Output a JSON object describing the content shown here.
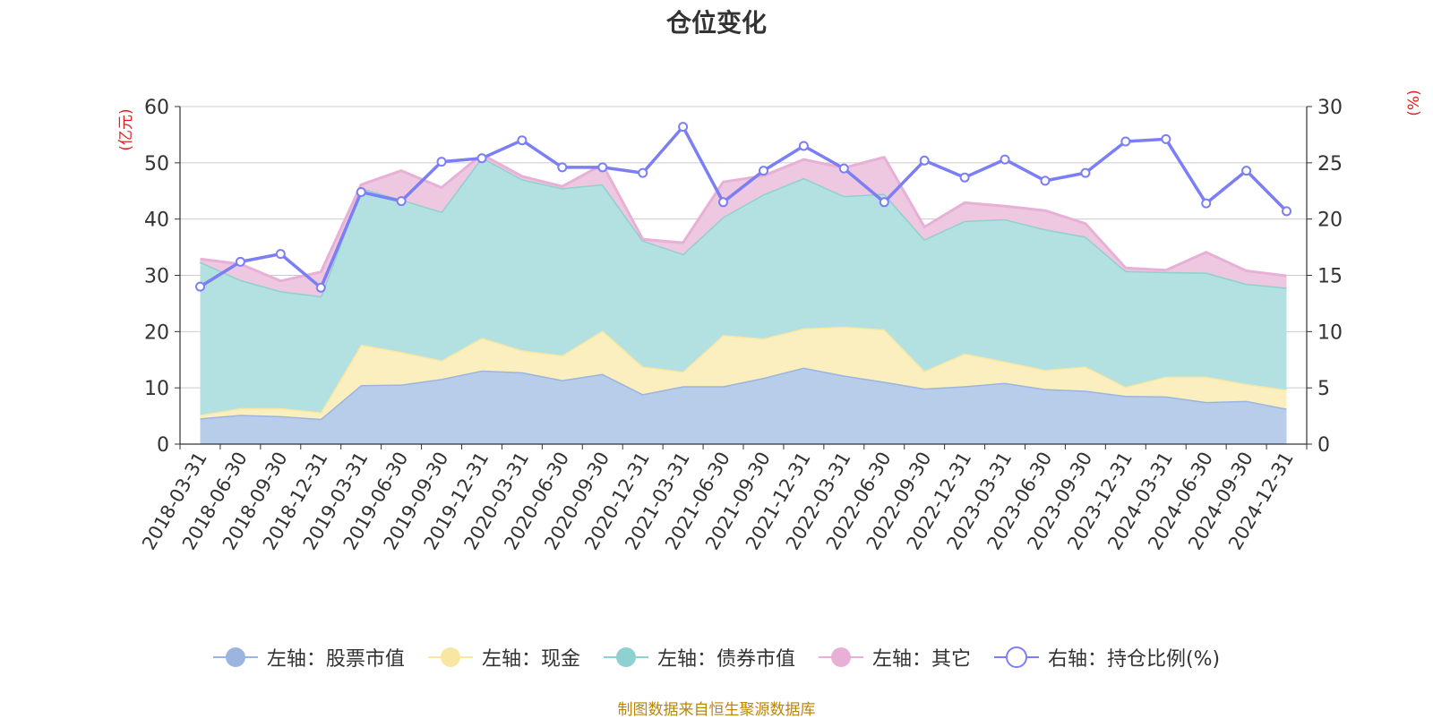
{
  "chart_data": {
    "type": "area",
    "title": "仓位变化",
    "left_axis_label": "(亿元)",
    "right_axis_label": "(%)",
    "left_ylim": [
      0,
      60
    ],
    "right_ylim": [
      0,
      30
    ],
    "left_ticks": [
      "0",
      "10",
      "20",
      "30",
      "40",
      "50",
      "60"
    ],
    "right_ticks": [
      "0",
      "5",
      "10",
      "15",
      "20",
      "25",
      "30"
    ],
    "grid": true,
    "legend_position": "bottom",
    "categories": [
      "2018-03-31",
      "2018-06-30",
      "2018-09-30",
      "2018-12-31",
      "2019-03-31",
      "2019-06-30",
      "2019-09-30",
      "2019-12-31",
      "2020-03-31",
      "2020-06-30",
      "2020-09-30",
      "2020-12-31",
      "2021-03-31",
      "2021-06-30",
      "2021-09-30",
      "2021-12-31",
      "2022-03-31",
      "2022-06-30",
      "2022-09-30",
      "2022-12-31",
      "2023-03-31",
      "2023-06-30",
      "2023-09-30",
      "2023-12-31",
      "2024-03-31",
      "2024-06-30",
      "2024-09-30",
      "2024-12-31"
    ],
    "series": [
      {
        "name": "左轴：股票市值",
        "axis": "left",
        "kind": "stacked-area",
        "color": "#9bb5e0",
        "fill": "#b8cdea",
        "values": [
          4.6,
          5.2,
          5.0,
          4.5,
          10.5,
          10.6,
          11.6,
          13.1,
          12.8,
          11.4,
          12.5,
          8.9,
          10.3,
          10.3,
          11.8,
          13.6,
          12.2,
          11.1,
          9.9,
          10.3,
          10.9,
          9.8,
          9.5,
          8.6,
          8.5,
          7.5,
          7.7,
          6.3
        ]
      },
      {
        "name": "左轴：现金",
        "axis": "left",
        "kind": "stacked-area",
        "color": "#f7e7a3",
        "fill": "#fbefbf",
        "values": [
          0.6,
          1.2,
          1.4,
          1.2,
          7.2,
          5.8,
          3.3,
          5.8,
          3.9,
          4.4,
          7.7,
          4.9,
          2.6,
          9.1,
          7.0,
          7.0,
          8.7,
          9.3,
          3.1,
          5.8,
          3.8,
          3.4,
          4.3,
          1.6,
          3.5,
          4.5,
          3.0,
          3.4
        ]
      },
      {
        "name": "左轴：债券市值",
        "axis": "left",
        "kind": "stacked-area",
        "color": "#8fd0d0",
        "fill": "#b3e0e0",
        "values": [
          27.2,
          22.8,
          20.8,
          20.6,
          27.8,
          27.1,
          26.4,
          32.1,
          30.4,
          29.7,
          26.0,
          22.4,
          20.9,
          21.0,
          25.6,
          26.7,
          23.2,
          24.1,
          23.4,
          23.6,
          25.3,
          25.0,
          23.1,
          20.6,
          18.6,
          18.5,
          17.8,
          18.1
        ]
      },
      {
        "name": "左轴：其它",
        "axis": "left",
        "kind": "stacked-area",
        "color": "#e8b0d6",
        "fill": "#edc8e0",
        "values": [
          0.5,
          2.8,
          1.8,
          4.3,
          0.6,
          5.1,
          4.3,
          0.5,
          0.5,
          0.3,
          3.5,
          0.2,
          2.0,
          6.2,
          3.3,
          3.3,
          5.0,
          6.5,
          2.2,
          3.2,
          2.3,
          3.3,
          2.3,
          0.5,
          0.3,
          3.6,
          2.3,
          2.1
        ]
      },
      {
        "name": "右轴：持仓比例(%)",
        "axis": "right",
        "kind": "line",
        "color": "#7b7ef5",
        "values": [
          14.0,
          16.2,
          16.9,
          13.9,
          22.4,
          21.6,
          25.1,
          25.4,
          27.0,
          24.6,
          24.6,
          24.1,
          28.2,
          21.5,
          24.3,
          26.5,
          24.5,
          21.5,
          25.2,
          23.7,
          25.3,
          23.4,
          24.1,
          26.9,
          27.1,
          21.4,
          24.3,
          20.7
        ]
      }
    ]
  },
  "source_note": "制图数据来自恒生聚源数据库"
}
